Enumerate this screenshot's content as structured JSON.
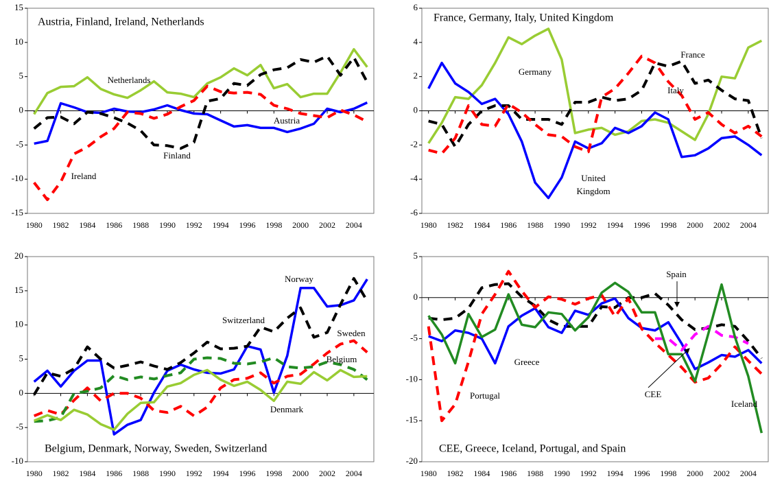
{
  "chart_data": [
    {
      "type": "line",
      "title": "Austria, Finland, Ireland, Netherlands",
      "x": [
        1980,
        1981,
        1982,
        1983,
        1984,
        1985,
        1986,
        1987,
        1988,
        1989,
        1990,
        1991,
        1992,
        1993,
        1994,
        1995,
        1996,
        1997,
        1998,
        1999,
        2000,
        2001,
        2002,
        2003,
        2004,
        2005
      ],
      "xlim": [
        1979.5,
        2005.5
      ],
      "xticks": [
        1980,
        1982,
        1984,
        1986,
        1988,
        1990,
        1992,
        1994,
        1996,
        1998,
        2000,
        2002,
        2004
      ],
      "ylim": [
        -15,
        15
      ],
      "yticks": [
        -15,
        -10,
        -5,
        0,
        5,
        10,
        15
      ],
      "series": [
        {
          "name": "Netherlands",
          "color": "#99cc33",
          "line_style": "solid",
          "values": [
            -0.5,
            2.6,
            3.5,
            3.6,
            4.9,
            3.2,
            2.4,
            1.9,
            3.0,
            4.3,
            2.7,
            2.5,
            2.0,
            4.0,
            4.9,
            6.2,
            5.2,
            6.7,
            3.3,
            3.9,
            2.0,
            2.5,
            2.5,
            5.6,
            9.0,
            6.4
          ]
        },
        {
          "name": "Austria",
          "color": "#0000ff",
          "line_style": "solid",
          "values": [
            -4.8,
            -4.4,
            1.1,
            0.5,
            -0.2,
            -0.3,
            0.3,
            -0.1,
            -0.2,
            0.2,
            0.8,
            0.1,
            -0.4,
            -0.5,
            -1.4,
            -2.3,
            -2.1,
            -2.5,
            -2.5,
            -3.1,
            -2.6,
            -1.9,
            0.3,
            -0.2,
            0.3,
            1.2
          ]
        },
        {
          "name": "Finland",
          "color": "#000000",
          "line_style": "dashed",
          "values": [
            -2.6,
            -1.0,
            -0.9,
            -1.9,
            -0.2,
            -0.4,
            -1.0,
            -1.8,
            -2.9,
            -5.0,
            -5.1,
            -5.5,
            -4.6,
            1.4,
            1.8,
            4.0,
            3.7,
            5.3,
            6.0,
            6.3,
            7.5,
            7.1,
            8.0,
            5.2,
            7.8,
            4.2
          ]
        },
        {
          "name": "Ireland",
          "color": "#ff0000",
          "line_style": "dashed",
          "values": [
            -10.5,
            -13.0,
            -10.4,
            -6.3,
            -5.3,
            -3.8,
            -2.6,
            -0.2,
            -0.4,
            -1.1,
            -0.5,
            0.6,
            1.5,
            3.6,
            2.8,
            2.6,
            2.7,
            2.4,
            0.8,
            0.3,
            -0.4,
            -0.7,
            -1.0,
            0.1,
            -0.6,
            -1.6
          ]
        }
      ]
    },
    {
      "type": "line",
      "title": "France, Germany, Italy, United Kingdom",
      "x": [
        1980,
        1981,
        1982,
        1983,
        1984,
        1985,
        1986,
        1987,
        1988,
        1989,
        1990,
        1991,
        1992,
        1993,
        1994,
        1995,
        1996,
        1997,
        1998,
        1999,
        2000,
        2001,
        2002,
        2003,
        2004,
        2005
      ],
      "xlim": [
        1979.5,
        2005.5
      ],
      "xticks": [
        1980,
        1982,
        1984,
        1986,
        1988,
        1990,
        1992,
        1994,
        1996,
        1998,
        2000,
        2002,
        2004
      ],
      "ylim": [
        -6,
        6
      ],
      "yticks": [
        -6,
        -4,
        -2,
        0,
        2,
        4,
        6
      ],
      "series": [
        {
          "name": "Germany",
          "color": "#99cc33",
          "line_style": "solid",
          "values": [
            -1.9,
            -0.7,
            0.8,
            0.7,
            1.5,
            2.8,
            4.3,
            3.9,
            4.4,
            4.8,
            3.0,
            -1.3,
            -1.1,
            -1.0,
            -1.4,
            -1.2,
            -0.6,
            -0.5,
            -0.7,
            -1.2,
            -1.7,
            -0.2,
            2.0,
            1.9,
            3.7,
            4.1
          ]
        },
        {
          "name": "United Kingdom",
          "color": "#0000ff",
          "line_style": "solid",
          "values": [
            1.3,
            2.8,
            1.6,
            1.1,
            0.4,
            0.7,
            -0.2,
            -1.8,
            -4.2,
            -5.1,
            -3.9,
            -1.8,
            -2.2,
            -1.9,
            -1.0,
            -1.3,
            -0.9,
            -0.1,
            -0.5,
            -2.7,
            -2.6,
            -2.2,
            -1.6,
            -1.5,
            -2.0,
            -2.6
          ]
        },
        {
          "name": "France",
          "color": "#000000",
          "line_style": "dashed",
          "values": [
            -0.6,
            -0.8,
            -2.1,
            -0.8,
            0.0,
            0.3,
            0.3,
            -0.5,
            -0.5,
            -0.5,
            -0.8,
            0.5,
            0.5,
            0.8,
            0.6,
            0.7,
            1.2,
            2.8,
            2.6,
            2.9,
            1.6,
            1.8,
            1.2,
            0.7,
            0.6,
            -1.6
          ]
        },
        {
          "name": "Italy",
          "color": "#ff0000",
          "line_style": "dashed",
          "values": [
            -2.3,
            -2.5,
            -1.6,
            0.3,
            -0.8,
            -0.9,
            0.4,
            -0.1,
            -0.8,
            -1.4,
            -1.5,
            -2.1,
            -2.4,
            0.8,
            1.3,
            2.2,
            3.2,
            2.8,
            1.7,
            0.9,
            -0.5,
            -0.1,
            -0.8,
            -1.3,
            -0.9,
            -1.5
          ]
        }
      ]
    },
    {
      "type": "line",
      "title": "Belgium, Denmark, Norway, Sweden, Switzerland",
      "x": [
        1980,
        1981,
        1982,
        1983,
        1984,
        1985,
        1986,
        1987,
        1988,
        1989,
        1990,
        1991,
        1992,
        1993,
        1994,
        1995,
        1996,
        1997,
        1998,
        1999,
        2000,
        2001,
        2002,
        2003,
        2004,
        2005
      ],
      "xlim": [
        1979.5,
        2005.5
      ],
      "xticks": [
        1980,
        1982,
        1984,
        1986,
        1988,
        1990,
        1992,
        1994,
        1996,
        1998,
        2000,
        2002,
        2004
      ],
      "ylim": [
        -10,
        20
      ],
      "yticks": [
        -10,
        -5,
        0,
        5,
        10,
        15,
        20
      ],
      "series": [
        {
          "name": "Norway",
          "color": "#0000ff",
          "line_style": "solid",
          "values": [
            1.7,
            3.3,
            1.0,
            3.3,
            4.8,
            4.8,
            -6.0,
            -4.6,
            -3.9,
            0.1,
            3.3,
            4.2,
            3.5,
            3.0,
            2.9,
            3.5,
            6.9,
            6.4,
            0.1,
            5.5,
            15.4,
            15.4,
            12.7,
            12.9,
            13.6,
            16.7
          ]
        },
        {
          "name": "Switzerland",
          "color": "#000000",
          "line_style": "dashed",
          "values": [
            -0.2,
            3.0,
            2.5,
            3.6,
            6.8,
            5.0,
            3.7,
            4.1,
            4.6,
            4.0,
            3.5,
            4.5,
            5.9,
            7.5,
            6.5,
            6.6,
            6.9,
            9.7,
            9.0,
            11.0,
            12.5,
            8.2,
            8.9,
            13.0,
            16.8,
            13.5
          ]
        },
        {
          "name": "Sweden",
          "color": "#ff0000",
          "line_style": "dashed",
          "values": [
            -3.3,
            -2.5,
            -3.1,
            -1.0,
            0.8,
            -1.1,
            0.0,
            0.0,
            -0.7,
            -2.5,
            -2.8,
            -1.9,
            -3.3,
            -2.0,
            0.8,
            2.0,
            2.2,
            3.0,
            1.5,
            2.5,
            2.8,
            4.3,
            5.9,
            7.2,
            7.7,
            6.0
          ]
        },
        {
          "name": "Belgium",
          "color": "#228b22",
          "line_style": "dashed",
          "values": [
            -4.1,
            -4.0,
            -3.5,
            0.0,
            0.3,
            0.8,
            2.6,
            2.0,
            2.4,
            2.1,
            2.6,
            3.0,
            5.0,
            5.2,
            5.1,
            4.4,
            4.3,
            4.6,
            5.2,
            3.9,
            3.7,
            3.9,
            4.6,
            4.2,
            3.5,
            2.0
          ]
        },
        {
          "name": "Denmark",
          "color": "#99cc33",
          "line_style": "solid",
          "values": [
            -4.0,
            -3.2,
            -3.9,
            -2.4,
            -3.1,
            -4.5,
            -5.3,
            -3.0,
            -1.4,
            -1.3,
            1.0,
            1.5,
            2.7,
            3.4,
            2.0,
            1.1,
            1.7,
            0.5,
            -1.1,
            1.7,
            1.4,
            3.1,
            1.9,
            3.4,
            2.4,
            2.5
          ]
        }
      ]
    },
    {
      "type": "line",
      "title": "CEE, Greece, Iceland, Portugal, and Spain",
      "x": [
        1980,
        1981,
        1982,
        1983,
        1984,
        1985,
        1986,
        1987,
        1988,
        1989,
        1990,
        1991,
        1992,
        1993,
        1994,
        1995,
        1996,
        1997,
        1998,
        1999,
        2000,
        2001,
        2002,
        2003,
        2004,
        2005
      ],
      "xlim": [
        1979.5,
        2005.5
      ],
      "xticks": [
        1980,
        1982,
        1984,
        1986,
        1988,
        1990,
        1992,
        1994,
        1996,
        1998,
        2000,
        2002,
        2004
      ],
      "ylim": [
        -20,
        5
      ],
      "yticks": [
        -20,
        -15,
        -10,
        -5,
        0,
        5
      ],
      "series": [
        {
          "name": "Spain",
          "color": "#000000",
          "line_style": "dashed",
          "values": [
            -2.5,
            -2.7,
            -2.5,
            -1.3,
            1.2,
            1.6,
            1.7,
            0.1,
            -1.0,
            -2.7,
            -3.5,
            -3.5,
            -3.5,
            -1.1,
            -1.2,
            0.0,
            0.0,
            0.5,
            -0.9,
            -2.7,
            -3.9,
            -3.7,
            -3.3,
            -3.5,
            -5.3,
            -7.4
          ]
        },
        {
          "name": "Greece",
          "color": "#0000ff",
          "line_style": "solid",
          "values": [
            -4.7,
            -5.3,
            -4.0,
            -4.3,
            -5.0,
            -8.0,
            -3.5,
            -2.2,
            -1.3,
            -3.6,
            -4.3,
            -1.6,
            -2.1,
            -0.7,
            -0.1,
            -2.5,
            -3.7,
            -4.0,
            -3.0,
            -5.6,
            -8.7,
            -7.9,
            -7.0,
            -7.2,
            -6.4,
            -8.0
          ]
        },
        {
          "name": "Portugal",
          "color": "#ff0000",
          "line_style": "dashed",
          "values": [
            -3.5,
            -15.0,
            -13.0,
            -7.8,
            -2.0,
            0.4,
            3.2,
            0.8,
            -1.2,
            0.1,
            -0.2,
            -0.8,
            -0.1,
            0.3,
            -2.3,
            -0.1,
            -3.8,
            -5.5,
            -7.0,
            -8.5,
            -10.3,
            -9.8,
            -8.1,
            -6.0,
            -7.7,
            -9.3
          ]
        },
        {
          "name": "CEE",
          "color": "#ff00ff",
          "line_style": "dashed",
          "values": [
            null,
            null,
            null,
            null,
            null,
            null,
            null,
            null,
            null,
            null,
            null,
            null,
            null,
            null,
            null,
            null,
            null,
            -5.0,
            -5.0,
            -6.4,
            -4.5,
            -3.5,
            -4.6,
            -4.8,
            -5.6,
            null
          ]
        },
        {
          "name": "Iceland",
          "color": "#228b22",
          "line_style": "solid",
          "values": [
            -2.2,
            -4.5,
            -8.0,
            -2.0,
            -4.8,
            -3.9,
            0.4,
            -3.3,
            -3.6,
            -1.8,
            -2.0,
            -4.0,
            -2.4,
            0.6,
            1.8,
            0.7,
            -1.8,
            -1.8,
            -6.9,
            -6.9,
            -10.2,
            -4.4,
            1.6,
            -4.8,
            -9.6,
            -16.5
          ]
        }
      ]
    }
  ]
}
